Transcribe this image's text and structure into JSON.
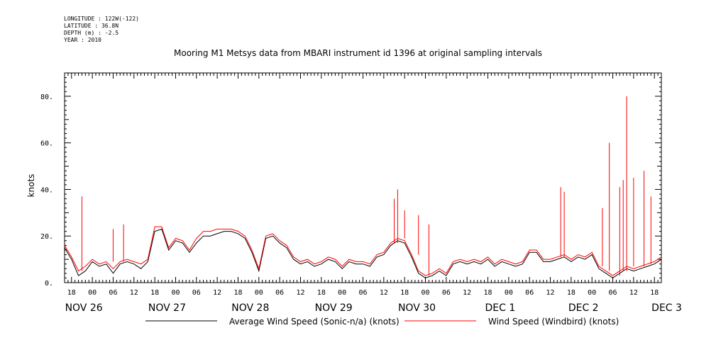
{
  "header": {
    "longitude": "LONGITUDE : 122W(-122)",
    "latitude": "LATITUDE : 36.8N",
    "depth": "DEPTH (m) : -2.5",
    "year": "YEAR : 2010"
  },
  "colors": {
    "series_average": "#000000",
    "series_windbird": "#ff0000"
  },
  "chart_data": {
    "type": "line",
    "title": "Mooring M1 Metsys data from MBARI instrument id 1396 at original sampling intervals",
    "xlabel": "",
    "ylabel": "knots",
    "ylim": [
      0,
      90
    ],
    "y_ticks": [
      "0.",
      "20.",
      "40.",
      "60.",
      "80."
    ],
    "xlim": [
      "2010-11-26T16:00",
      "2010-12-03T20:00"
    ],
    "x_hour_ticks": [
      "18",
      "00",
      "06",
      "12",
      "18",
      "00",
      "06",
      "12",
      "18",
      "00",
      "06",
      "12",
      "18",
      "00",
      "06",
      "12",
      "18",
      "00",
      "06",
      "12",
      "18",
      "00",
      "06",
      "12",
      "18",
      "00",
      "06",
      "12",
      "18"
    ],
    "x_day_labels": [
      "NOV 26",
      "NOV 27",
      "NOV 28",
      "NOV 29",
      "NOV 30",
      "DEC 1",
      "DEC 2",
      "DEC 3"
    ],
    "grid": false,
    "legend_placement": "bottom",
    "series": [
      {
        "name": "Average Wind Speed (Sonic-n/a) (knots)",
        "x_hours_from_start": [
          0,
          2,
          4,
          6,
          8,
          10,
          12,
          14,
          16,
          18,
          20,
          22,
          24,
          26,
          28,
          30,
          32,
          34,
          36,
          38,
          40,
          42,
          44,
          46,
          48,
          50,
          52,
          54,
          56,
          58,
          60,
          62,
          64,
          66,
          68,
          70,
          72,
          74,
          76,
          78,
          80,
          82,
          84,
          86,
          88,
          90,
          92,
          94,
          96,
          98,
          100,
          102,
          104,
          106,
          108,
          110,
          112,
          114,
          116,
          118,
          120,
          122,
          124,
          126,
          128,
          130,
          132,
          134,
          136,
          138,
          140,
          142,
          144,
          146,
          148,
          150,
          152,
          154,
          156,
          158,
          160,
          162,
          164,
          166,
          168,
          170,
          172
        ],
        "values": [
          15,
          10,
          3,
          5,
          9,
          7,
          8,
          4,
          8,
          9,
          8,
          6,
          9,
          22,
          23,
          14,
          18,
          17,
          13,
          17,
          20,
          20,
          21,
          22,
          22,
          21,
          19,
          13,
          5,
          19,
          20,
          17,
          15,
          10,
          8,
          9,
          7,
          8,
          10,
          9,
          6,
          9,
          8,
          8,
          7,
          11,
          12,
          16,
          18,
          17,
          11,
          4,
          2,
          3,
          5,
          3,
          8,
          9,
          8,
          9,
          8,
          10,
          7,
          9,
          8,
          7,
          8,
          13,
          13,
          9,
          9,
          10,
          11,
          9,
          11,
          10,
          12,
          6,
          4,
          2,
          4,
          6,
          5,
          6,
          7,
          8,
          10
        ]
      },
      {
        "name": "Wind Speed (Windbird) (knots)",
        "x_hours_from_start": [
          0,
          2,
          4,
          6,
          8,
          10,
          12,
          14,
          16,
          18,
          20,
          22,
          24,
          26,
          28,
          30,
          32,
          34,
          36,
          38,
          40,
          42,
          44,
          46,
          48,
          50,
          52,
          54,
          56,
          58,
          60,
          62,
          64,
          66,
          68,
          70,
          72,
          74,
          76,
          78,
          80,
          82,
          84,
          86,
          88,
          90,
          92,
          94,
          96,
          98,
          100,
          102,
          104,
          106,
          108,
          110,
          112,
          114,
          116,
          118,
          120,
          122,
          124,
          126,
          128,
          130,
          132,
          134,
          136,
          138,
          140,
          142,
          144,
          146,
          148,
          150,
          152,
          154,
          156,
          158,
          160,
          162,
          164,
          166,
          168,
          170,
          172
        ],
        "values": [
          16,
          11,
          5,
          7,
          10,
          8,
          9,
          6,
          9,
          10,
          9,
          8,
          10,
          24,
          24,
          15,
          19,
          18,
          14,
          19,
          22,
          22,
          23,
          23,
          23,
          22,
          20,
          14,
          6,
          20,
          21,
          18,
          16,
          11,
          9,
          10,
          8,
          9,
          11,
          10,
          7,
          10,
          9,
          9,
          8,
          12,
          13,
          17,
          19,
          18,
          12,
          5,
          3,
          4,
          6,
          4,
          9,
          10,
          9,
          10,
          9,
          11,
          8,
          10,
          9,
          8,
          9,
          14,
          14,
          10,
          10,
          11,
          12,
          10,
          12,
          11,
          13,
          7,
          5,
          3,
          5,
          7,
          6,
          7,
          8,
          9,
          11
        ],
        "spikes": [
          [
            5,
            37
          ],
          [
            14,
            23
          ],
          [
            17,
            25
          ],
          [
            95,
            36
          ],
          [
            96,
            40
          ],
          [
            98,
            31
          ],
          [
            102,
            29
          ],
          [
            105,
            25
          ],
          [
            143,
            41
          ],
          [
            144,
            39
          ],
          [
            155,
            32
          ],
          [
            157,
            60
          ],
          [
            160,
            41
          ],
          [
            161,
            44
          ],
          [
            162,
            80
          ],
          [
            164,
            45
          ],
          [
            167,
            48
          ],
          [
            169,
            37
          ]
        ]
      }
    ]
  }
}
